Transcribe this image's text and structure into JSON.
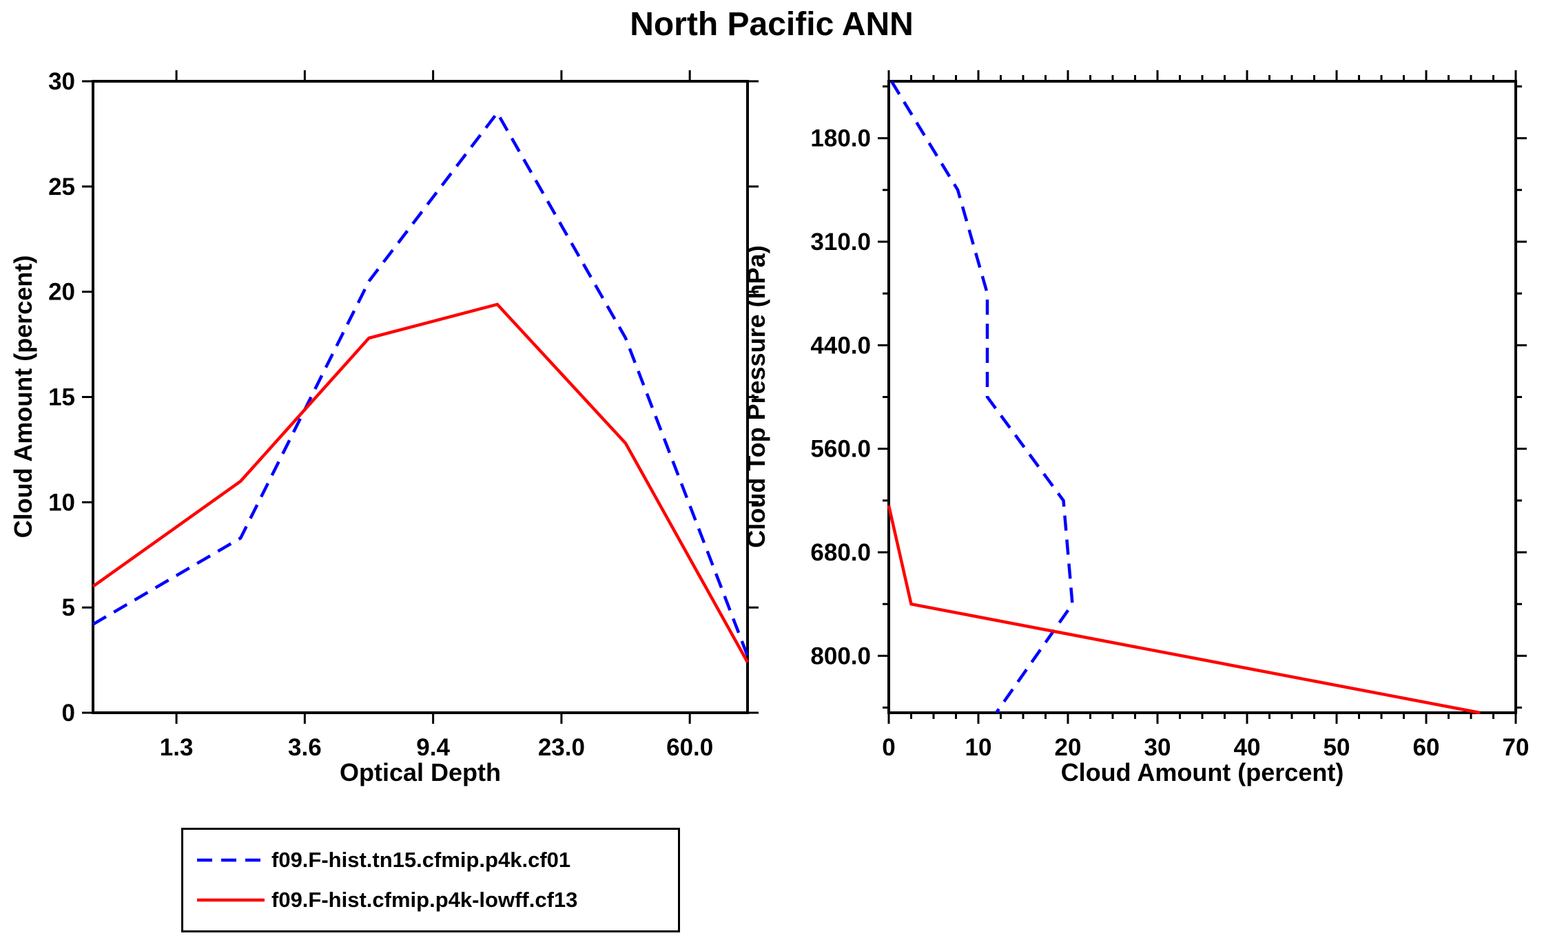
{
  "title": "North Pacific ANN",
  "colors": {
    "series_blue": "#0000FF",
    "series_red": "#FF0000",
    "axis": "#000000",
    "background": "#FFFFFF"
  },
  "legend": {
    "items": [
      {
        "label": "f09.F-hist.tn15.cfmip.p4k.cf01",
        "color": "#0000FF",
        "dash": true
      },
      {
        "label": "f09.F-hist.cfmip.p4k-lowff.cf13",
        "color": "#FF0000",
        "dash": false
      }
    ]
  },
  "chart_data": [
    {
      "id": "optical-depth-panel",
      "type": "line",
      "xlabel": "Optical Depth",
      "ylabel": "Cloud Amount (percent)",
      "x_scale_note": "categorical optical-depth bin axis; tick labels evenly spaced, data points at bin centers (unit scale: 1=1.3, 2=3.6, 3=9.4, 4=23.0, 5=60.0)",
      "x_tick_labels": [
        "1.3",
        "3.6",
        "9.4",
        "23.0",
        "60.0"
      ],
      "x_tick_units": [
        1,
        2,
        3,
        4,
        5
      ],
      "xlim_units": [
        0.35,
        5.45
      ],
      "ylim": [
        0,
        30
      ],
      "y_ticks": [
        0,
        5,
        10,
        15,
        20,
        25,
        30
      ],
      "grid": false,
      "series": [
        {
          "name": "f09.F-hist.tn15.cfmip.p4k.cf01",
          "color": "#0000FF",
          "dash": true,
          "x_units": [
            0.35,
            1.5,
            2.5,
            3.5,
            4.5,
            5.45
          ],
          "y": [
            4.2,
            8.3,
            20.5,
            28.5,
            17.8,
            2.7
          ]
        },
        {
          "name": "f09.F-hist.cfmip.p4k-lowff.cf13",
          "color": "#FF0000",
          "dash": false,
          "x_units": [
            0.35,
            1.5,
            2.5,
            3.5,
            4.5,
            5.45
          ],
          "y": [
            6.0,
            11.0,
            17.8,
            19.4,
            12.8,
            2.4
          ]
        }
      ]
    },
    {
      "id": "cloud-top-pressure-panel",
      "type": "line",
      "xlabel": "Cloud Amount (percent)",
      "ylabel": "Cloud Top Pressure (hPa)",
      "xlim": [
        0,
        70
      ],
      "x_ticks": [
        0,
        10,
        20,
        30,
        40,
        50,
        60,
        70
      ],
      "x_minor_step": 2.5,
      "y_scale_note": "categorical pressure-bin axis, pressure increases downward (unit scale: 1=180.0, 2=310.0, 3=440.0, 4=560.0, 5=680.0, 6=800.0 hPa)",
      "y_tick_labels": [
        "180.0",
        "310.0",
        "440.0",
        "560.0",
        "680.0",
        "800.0"
      ],
      "y_tick_units": [
        1,
        2,
        3,
        4,
        5,
        6
      ],
      "ylim_units": [
        0.45,
        6.55
      ],
      "grid": false,
      "series": [
        {
          "name": "f09.F-hist.tn15.cfmip.p4k.cf01",
          "color": "#0000FF",
          "dash": true,
          "x": [
            0.3,
            7.7,
            11.0,
            11.0,
            19.5,
            20.5,
            12.0
          ],
          "y_units": [
            0.45,
            1.5,
            2.5,
            3.5,
            4.5,
            5.5,
            6.55
          ]
        },
        {
          "name": "f09.F-hist.cfmip.p4k-lowff.cf13",
          "color": "#FF0000",
          "dash": false,
          "x": [
            0.0,
            2.5,
            66.0
          ],
          "y_units": [
            4.55,
            5.5,
            6.55
          ]
        }
      ]
    }
  ]
}
